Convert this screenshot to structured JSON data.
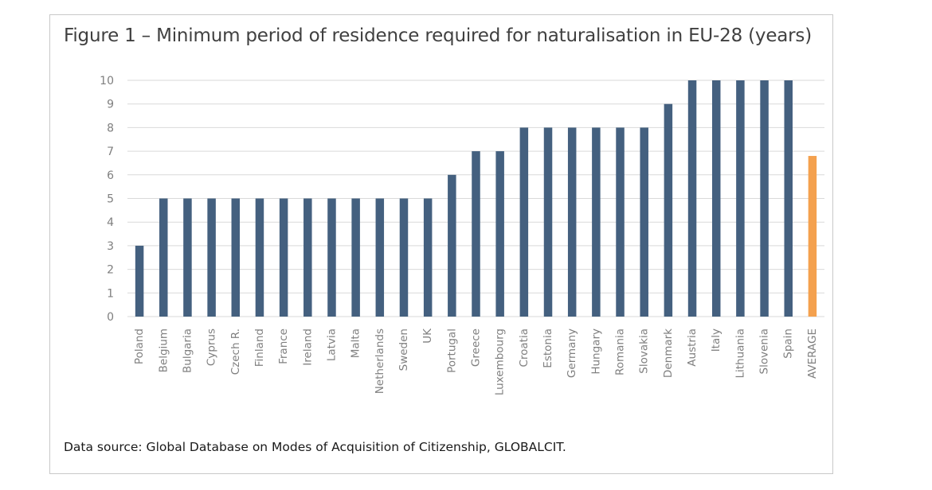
{
  "chart_data": {
    "type": "bar",
    "title": "Figure 1 – Minimum period of residence required for naturalisation in EU-28 (years)",
    "xlabel": "",
    "ylabel": "",
    "ylim": [
      0,
      10
    ],
    "yticks": [
      0,
      1,
      2,
      3,
      4,
      5,
      6,
      7,
      8,
      9,
      10
    ],
    "grid": true,
    "legend": "none",
    "colors": {
      "bar": "#44607f",
      "average": "#f4a14e",
      "grid": "#d9d9d9",
      "axis_text": "#7f7f7f"
    },
    "categories": [
      "Poland",
      "Belgium",
      "Bulgaria",
      "Cyprus",
      "Czech R.",
      "Finland",
      "France",
      "Ireland",
      "Latvia",
      "Malta",
      "Netherlands",
      "Sweden",
      "UK",
      "Portugal",
      "Greece",
      "Luxembourg",
      "Croatia",
      "Estonia",
      "Germany",
      "Hungary",
      "Romania",
      "Slovakia",
      "Denmark",
      "Austria",
      "Italy",
      "Lithuania",
      "Slovenia",
      "Spain",
      "AVERAGE"
    ],
    "values": [
      3,
      5,
      5,
      5,
      5,
      5,
      5,
      5,
      5,
      5,
      5,
      5,
      5,
      6,
      7,
      7,
      8,
      8,
      8,
      8,
      8,
      8,
      9,
      10,
      10,
      10,
      10,
      10,
      6.8
    ],
    "highlight_category": "AVERAGE"
  },
  "footer": {
    "source": "Data source: Global Database on Modes of Acquisition of Citizenship, GLOBALCIT."
  }
}
